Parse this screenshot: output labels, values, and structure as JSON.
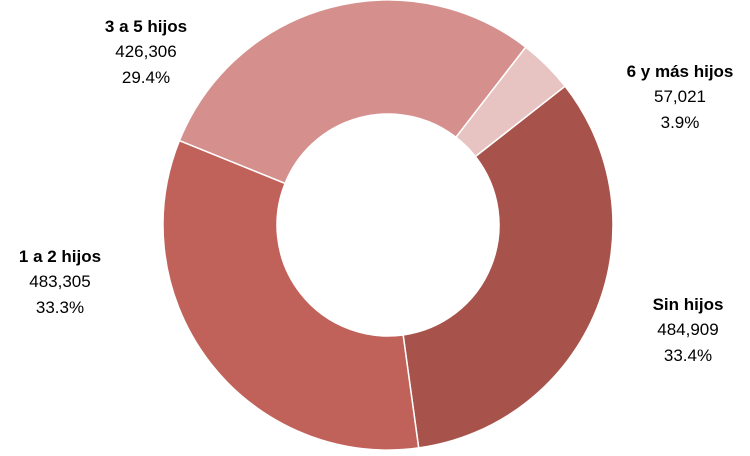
{
  "chart_data": {
    "type": "pie",
    "donut": true,
    "legend": "none",
    "slices": [
      {
        "name": "Sin hijos",
        "value": 484909,
        "value_label": "484,909",
        "percent": 33.4,
        "percent_label": "33.4%",
        "color": "#a7534c"
      },
      {
        "name": "1 a 2 hijos",
        "value": 483305,
        "value_label": "483,305",
        "percent": 33.3,
        "percent_label": "33.3%",
        "color": "#c0615a"
      },
      {
        "name": "3 a 5 hijos",
        "value": 426306,
        "value_label": "426,306",
        "percent": 29.4,
        "percent_label": "29.4%",
        "color": "#d5908e"
      },
      {
        "name": "6 y más hijos",
        "value": 57021,
        "value_label": "57,021",
        "percent": 3.9,
        "percent_label": "3.9%",
        "color": "#e7c4c2"
      }
    ]
  }
}
